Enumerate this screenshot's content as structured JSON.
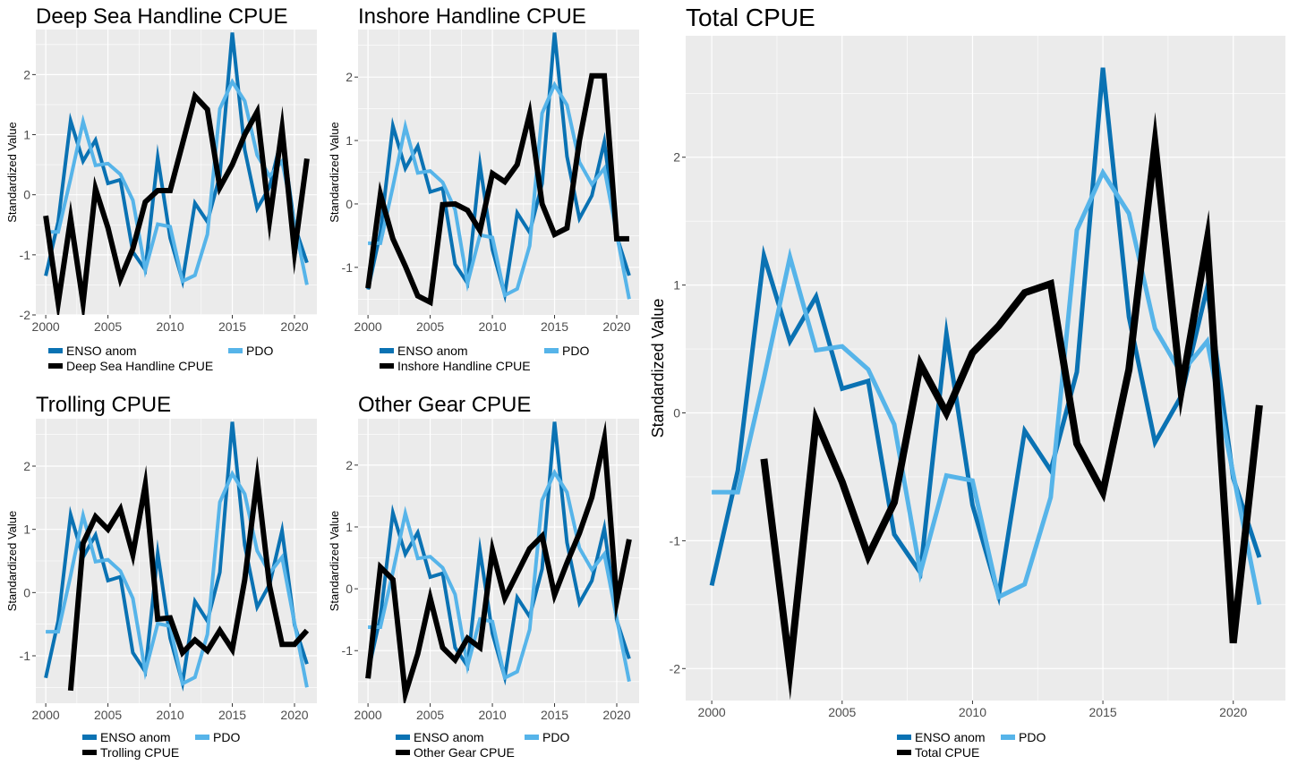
{
  "colors": {
    "enso": "#0a72b3",
    "pdo": "#56b4e9",
    "cpue": "#000000",
    "panel_bg": "#ebebeb",
    "grid": "#ffffff"
  },
  "chart_data": [
    {
      "type": "line",
      "title": "Deep Sea Handline CPUE",
      "xlabel": "",
      "ylabel": "Standardized Value",
      "xlim": [
        1999.2,
        2021.8
      ],
      "ylim": [
        -2.0,
        2.75
      ],
      "xticks": [
        2000,
        2005,
        2010,
        2015,
        2020
      ],
      "yticks": [
        -2,
        -1,
        0,
        1,
        2
      ],
      "legend_position": "bottom",
      "legend_labels": [
        "ENSO anom",
        "PDO",
        "Deep Sea Handline CPUE"
      ],
      "series": [
        {
          "name": "ENSO anom",
          "color": "enso",
          "x": [
            2000,
            2001,
            2002,
            2003,
            2004,
            2005,
            2006,
            2007,
            2008,
            2009,
            2010,
            2011,
            2012,
            2013,
            2014,
            2015,
            2016,
            2017,
            2018,
            2019,
            2020,
            2021
          ],
          "y": [
            -1.35,
            -0.45,
            1.23,
            0.56,
            0.91,
            0.19,
            0.25,
            -0.95,
            -1.25,
            0.62,
            -0.72,
            -1.43,
            -0.14,
            -0.45,
            0.32,
            2.7,
            0.75,
            -0.23,
            0.13,
            0.98,
            -0.51,
            -1.13
          ]
        },
        {
          "name": "PDO",
          "color": "pdo",
          "x": [
            2000,
            2001,
            2002,
            2003,
            2004,
            2005,
            2006,
            2007,
            2008,
            2009,
            2010,
            2011,
            2012,
            2013,
            2014,
            2015,
            2016,
            2017,
            2018,
            2019,
            2020,
            2021
          ],
          "y": [
            -0.62,
            -0.62,
            0.27,
            1.22,
            0.49,
            0.52,
            0.34,
            -0.09,
            -1.25,
            -0.49,
            -0.53,
            -1.44,
            -1.34,
            -0.66,
            1.43,
            1.88,
            1.56,
            0.66,
            0.31,
            0.56,
            -0.48,
            -1.5
          ]
        },
        {
          "name": "Deep Sea Handline CPUE",
          "color": "cpue",
          "x": [
            2000,
            2001,
            2002,
            2003,
            2004,
            2005,
            2006,
            2007,
            2008,
            2009,
            2010,
            2011,
            2012,
            2013,
            2014,
            2015,
            2016,
            2017,
            2018,
            2019,
            2020,
            2021
          ],
          "y": [
            -0.35,
            -1.8,
            -0.4,
            -1.8,
            0.1,
            -0.55,
            -1.4,
            -0.9,
            -0.12,
            0.07,
            0.07,
            0.85,
            1.64,
            1.42,
            0.12,
            0.5,
            1.0,
            1.38,
            -0.42,
            1.1,
            -0.95,
            0.6
          ]
        }
      ]
    },
    {
      "type": "line",
      "title": "Inshore Handline CPUE",
      "xlabel": "",
      "ylabel": "Standardized Value",
      "xlim": [
        1999.2,
        2021.8
      ],
      "ylim": [
        -1.75,
        2.75
      ],
      "xticks": [
        2000,
        2005,
        2010,
        2015,
        2020
      ],
      "yticks": [
        -1,
        0,
        1,
        2
      ],
      "legend_position": "bottom",
      "legend_labels": [
        "ENSO anom",
        "PDO",
        "Inshore Handline CPUE"
      ],
      "series": [
        {
          "name": "ENSO anom",
          "color": "enso",
          "x": [
            2000,
            2001,
            2002,
            2003,
            2004,
            2005,
            2006,
            2007,
            2008,
            2009,
            2010,
            2011,
            2012,
            2013,
            2014,
            2015,
            2016,
            2017,
            2018,
            2019,
            2020,
            2021
          ],
          "y": [
            -1.35,
            -0.45,
            1.23,
            0.56,
            0.91,
            0.19,
            0.25,
            -0.95,
            -1.25,
            0.62,
            -0.72,
            -1.43,
            -0.14,
            -0.45,
            0.32,
            2.7,
            0.75,
            -0.23,
            0.13,
            0.98,
            -0.51,
            -1.13
          ]
        },
        {
          "name": "PDO",
          "color": "pdo",
          "x": [
            2000,
            2001,
            2002,
            2003,
            2004,
            2005,
            2006,
            2007,
            2008,
            2009,
            2010,
            2011,
            2012,
            2013,
            2014,
            2015,
            2016,
            2017,
            2018,
            2019,
            2020,
            2021
          ],
          "y": [
            -0.62,
            -0.62,
            0.27,
            1.22,
            0.49,
            0.52,
            0.34,
            -0.09,
            -1.25,
            -0.49,
            -0.53,
            -1.44,
            -1.34,
            -0.66,
            1.43,
            1.88,
            1.56,
            0.66,
            0.31,
            0.56,
            -0.48,
            -1.5
          ]
        },
        {
          "name": "Inshore Handline CPUE",
          "color": "cpue",
          "x": [
            2000,
            2001,
            2002,
            2003,
            2004,
            2005,
            2006,
            2007,
            2008,
            2009,
            2010,
            2011,
            2012,
            2013,
            2014,
            2015,
            2016,
            2017,
            2018,
            2019,
            2020,
            2021
          ],
          "y": [
            -1.33,
            0.15,
            -0.55,
            -0.98,
            -1.45,
            -1.55,
            -0.01,
            0.0,
            -0.1,
            -0.42,
            0.48,
            0.35,
            0.62,
            1.42,
            0.0,
            -0.48,
            -0.38,
            1.0,
            2.02,
            2.02,
            -0.55,
            -0.55
          ]
        }
      ]
    },
    {
      "type": "line",
      "title": "Trolling CPUE",
      "xlabel": "",
      "ylabel": "Standardized Value",
      "xlim": [
        1999.2,
        2021.8
      ],
      "ylim": [
        -1.75,
        2.75
      ],
      "xticks": [
        2000,
        2005,
        2010,
        2015,
        2020
      ],
      "yticks": [
        -1,
        0,
        1,
        2
      ],
      "legend_position": "bottom",
      "legend_labels": [
        "ENSO anom",
        "PDO",
        "Trolling CPUE"
      ],
      "series": [
        {
          "name": "ENSO anom",
          "color": "enso",
          "x": [
            2000,
            2001,
            2002,
            2003,
            2004,
            2005,
            2006,
            2007,
            2008,
            2009,
            2010,
            2011,
            2012,
            2013,
            2014,
            2015,
            2016,
            2017,
            2018,
            2019,
            2020,
            2021
          ],
          "y": [
            -1.35,
            -0.45,
            1.23,
            0.56,
            0.91,
            0.19,
            0.25,
            -0.95,
            -1.25,
            0.62,
            -0.72,
            -1.43,
            -0.14,
            -0.45,
            0.32,
            2.7,
            0.75,
            -0.23,
            0.13,
            0.98,
            -0.51,
            -1.13
          ]
        },
        {
          "name": "PDO",
          "color": "pdo",
          "x": [
            2000,
            2001,
            2002,
            2003,
            2004,
            2005,
            2006,
            2007,
            2008,
            2009,
            2010,
            2011,
            2012,
            2013,
            2014,
            2015,
            2016,
            2017,
            2018,
            2019,
            2020,
            2021
          ],
          "y": [
            -0.62,
            -0.62,
            0.27,
            1.22,
            0.49,
            0.52,
            0.34,
            -0.09,
            -1.25,
            -0.49,
            -0.53,
            -1.44,
            -1.34,
            -0.66,
            1.43,
            1.88,
            1.56,
            0.66,
            0.31,
            0.56,
            -0.48,
            -1.5
          ]
        },
        {
          "name": "Trolling CPUE",
          "color": "cpue",
          "x": [
            2002,
            2003,
            2004,
            2005,
            2006,
            2007,
            2008,
            2009,
            2010,
            2011,
            2012,
            2013,
            2014,
            2015,
            2016,
            2017,
            2018,
            2019,
            2020,
            2021
          ],
          "y": [
            -1.55,
            0.78,
            1.2,
            1.0,
            1.32,
            0.6,
            1.7,
            -0.42,
            -0.4,
            -0.95,
            -0.75,
            -0.92,
            -0.6,
            -0.9,
            0.2,
            1.8,
            0.1,
            -0.82,
            -0.82,
            -0.6
          ]
        }
      ]
    },
    {
      "type": "line",
      "title": "Other Gear CPUE",
      "xlabel": "",
      "ylabel": "Standardized Value",
      "xlim": [
        1999.2,
        2021.8
      ],
      "ylim": [
        -1.85,
        2.75
      ],
      "xticks": [
        2000,
        2005,
        2010,
        2015,
        2020
      ],
      "yticks": [
        -1,
        0,
        1,
        2
      ],
      "legend_position": "bottom",
      "legend_labels": [
        "ENSO anom",
        "PDO",
        "Other Gear CPUE"
      ],
      "series": [
        {
          "name": "ENSO anom",
          "color": "enso",
          "x": [
            2000,
            2001,
            2002,
            2003,
            2004,
            2005,
            2006,
            2007,
            2008,
            2009,
            2010,
            2011,
            2012,
            2013,
            2014,
            2015,
            2016,
            2017,
            2018,
            2019,
            2020,
            2021
          ],
          "y": [
            -1.35,
            -0.45,
            1.23,
            0.56,
            0.91,
            0.19,
            0.25,
            -0.95,
            -1.25,
            0.62,
            -0.72,
            -1.43,
            -0.14,
            -0.45,
            0.32,
            2.7,
            0.75,
            -0.23,
            0.13,
            0.98,
            -0.51,
            -1.13
          ]
        },
        {
          "name": "PDO",
          "color": "pdo",
          "x": [
            2000,
            2001,
            2002,
            2003,
            2004,
            2005,
            2006,
            2007,
            2008,
            2009,
            2010,
            2011,
            2012,
            2013,
            2014,
            2015,
            2016,
            2017,
            2018,
            2019,
            2020,
            2021
          ],
          "y": [
            -0.62,
            -0.62,
            0.27,
            1.22,
            0.49,
            0.52,
            0.34,
            -0.09,
            -1.25,
            -0.49,
            -0.53,
            -1.44,
            -1.34,
            -0.66,
            1.43,
            1.88,
            1.56,
            0.66,
            0.31,
            0.56,
            -0.48,
            -1.5
          ]
        },
        {
          "name": "Other Gear CPUE",
          "color": "cpue",
          "x": [
            2000,
            2001,
            2002,
            2003,
            2004,
            2005,
            2006,
            2007,
            2008,
            2009,
            2010,
            2011,
            2012,
            2013,
            2014,
            2015,
            2016,
            2017,
            2018,
            2019,
            2020,
            2021
          ],
          "y": [
            -1.45,
            0.35,
            0.15,
            -1.7,
            -1.05,
            -0.15,
            -0.95,
            -1.15,
            -0.8,
            -0.95,
            0.62,
            -0.15,
            0.25,
            0.65,
            0.85,
            -0.1,
            0.42,
            0.9,
            1.48,
            2.42,
            -0.2,
            0.8
          ]
        }
      ]
    },
    {
      "type": "line",
      "title": "Total CPUE",
      "xlabel": "",
      "ylabel": "Standardized Value",
      "xlim": [
        1999.0,
        2022.0
      ],
      "ylim": [
        -2.25,
        2.95
      ],
      "xticks": [
        2000,
        2005,
        2010,
        2015,
        2020
      ],
      "yticks": [
        -2,
        -1,
        0,
        1,
        2
      ],
      "legend_position": "bottom",
      "legend_labels": [
        "ENSO anom",
        "PDO",
        "Total CPUE"
      ],
      "series": [
        {
          "name": "ENSO anom",
          "color": "enso",
          "x": [
            2000,
            2001,
            2002,
            2003,
            2004,
            2005,
            2006,
            2007,
            2008,
            2009,
            2010,
            2011,
            2012,
            2013,
            2014,
            2015,
            2016,
            2017,
            2018,
            2019,
            2020,
            2021
          ],
          "y": [
            -1.35,
            -0.45,
            1.23,
            0.56,
            0.91,
            0.19,
            0.25,
            -0.95,
            -1.25,
            0.62,
            -0.72,
            -1.43,
            -0.14,
            -0.45,
            0.32,
            2.7,
            0.75,
            -0.23,
            0.13,
            0.98,
            -0.51,
            -1.13
          ]
        },
        {
          "name": "PDO",
          "color": "pdo",
          "x": [
            2000,
            2001,
            2002,
            2003,
            2004,
            2005,
            2006,
            2007,
            2008,
            2009,
            2010,
            2011,
            2012,
            2013,
            2014,
            2015,
            2016,
            2017,
            2018,
            2019,
            2020,
            2021
          ],
          "y": [
            -0.62,
            -0.62,
            0.27,
            1.22,
            0.49,
            0.52,
            0.34,
            -0.09,
            -1.25,
            -0.49,
            -0.53,
            -1.44,
            -1.34,
            -0.66,
            1.43,
            1.88,
            1.56,
            0.66,
            0.31,
            0.56,
            -0.48,
            -1.5
          ]
        },
        {
          "name": "Total CPUE",
          "color": "cpue",
          "x": [
            2002,
            2003,
            2004,
            2005,
            2006,
            2007,
            2008,
            2009,
            2010,
            2011,
            2012,
            2013,
            2014,
            2015,
            2016,
            2017,
            2018,
            2019,
            2020,
            2021
          ],
          "y": [
            -0.36,
            -2.0,
            -0.06,
            -0.54,
            -1.12,
            -0.7,
            0.38,
            0.0,
            0.47,
            0.68,
            0.94,
            1.01,
            -0.24,
            -0.62,
            0.34,
            2.1,
            0.17,
            1.35,
            -1.8,
            0.06
          ]
        }
      ]
    }
  ]
}
